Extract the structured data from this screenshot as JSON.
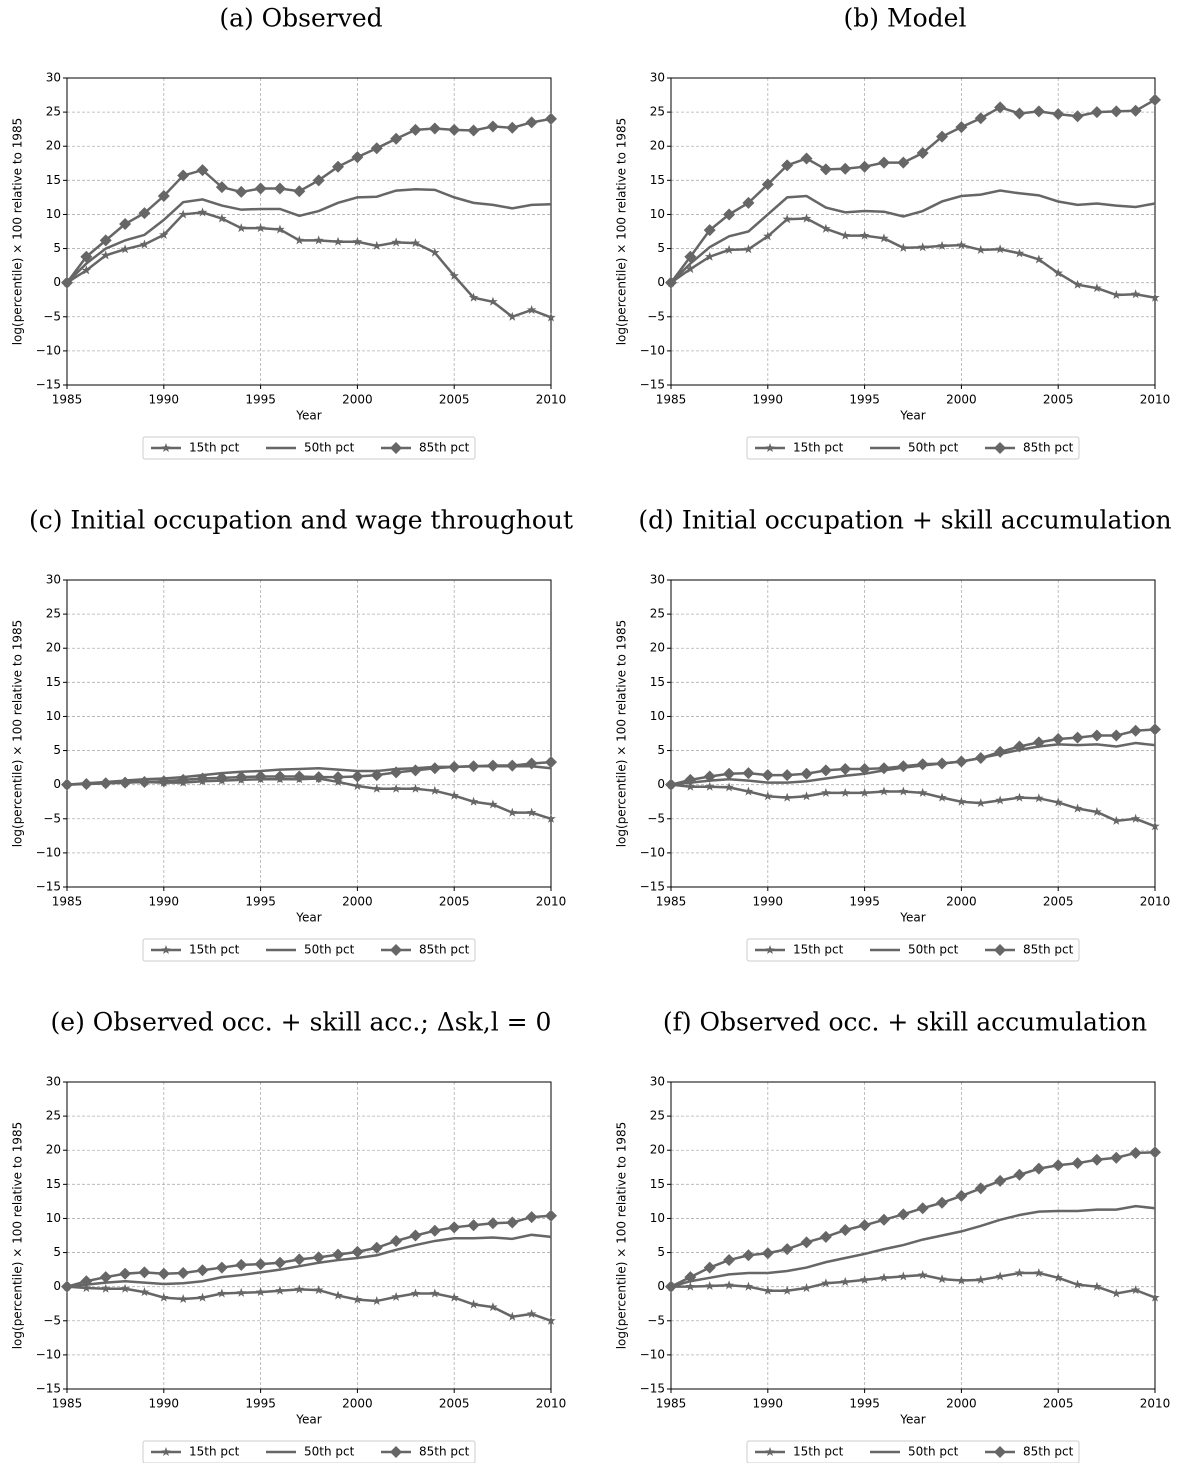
{
  "chart_data": [
    {
      "type": "line",
      "title": "(a) Observed",
      "x_label": "Year",
      "y_label": "log(percentile) × 100 relative to 1985",
      "x": [
        1985,
        1986,
        1987,
        1988,
        1989,
        1990,
        1991,
        1992,
        1993,
        1994,
        1995,
        1996,
        1997,
        1998,
        1999,
        2000,
        2001,
        2002,
        2003,
        2004,
        2005,
        2006,
        2007,
        2008,
        2009,
        2010
      ],
      "series": [
        {
          "name": "15th pct",
          "color": "#666666",
          "marker": "star",
          "values": [
            0,
            1.8,
            4,
            4.9,
            5.6,
            7,
            10,
            10.3,
            9.4,
            8,
            8,
            7.8,
            6.2,
            6.2,
            6,
            6,
            5.4,
            5.9,
            5.8,
            4.4,
            1,
            -2.2,
            -2.8,
            -5,
            -4,
            -5.1
          ]
        },
        {
          "name": "50th pct",
          "color": "#666666",
          "marker": "none",
          "values": [
            0,
            2.8,
            5,
            6.2,
            7,
            9.2,
            11.8,
            12.2,
            11.3,
            10.7,
            10.8,
            10.8,
            9.8,
            10.5,
            11.7,
            12.5,
            12.6,
            13.5,
            13.7,
            13.6,
            12.5,
            11.7,
            11.4,
            10.9,
            11.4,
            11.5
          ]
        },
        {
          "name": "85th pct",
          "color": "#666666",
          "marker": "diamond",
          "values": [
            0,
            3.8,
            6.2,
            8.6,
            10.2,
            12.7,
            15.7,
            16.5,
            14,
            13.3,
            13.8,
            13.8,
            13.4,
            15,
            17,
            18.4,
            19.7,
            21.1,
            22.4,
            22.6,
            22.4,
            22.3,
            22.9,
            22.7,
            23.5,
            24
          ]
        }
      ],
      "xlim": [
        1985,
        2010
      ],
      "ylim": [
        -15,
        30
      ],
      "xticks": [
        1985,
        1990,
        1995,
        2000,
        2005,
        2010
      ],
      "yticks": [
        {
          "value": -15,
          "label": "−15"
        },
        {
          "value": -10,
          "label": "−10"
        },
        {
          "value": -5,
          "label": "−5"
        },
        0,
        5,
        10,
        15,
        20,
        25,
        30
      ],
      "grid": true
    },
    {
      "type": "line",
      "title": "(b) Model",
      "x_label": "Year",
      "y_label": "log(percentile) × 100 relative to 1985",
      "x": [
        1985,
        1986,
        1987,
        1988,
        1989,
        1990,
        1991,
        1992,
        1993,
        1994,
        1995,
        1996,
        1997,
        1998,
        1999,
        2000,
        2001,
        2002,
        2003,
        2004,
        2005,
        2006,
        2007,
        2008,
        2009,
        2010
      ],
      "series": [
        {
          "name": "15th pct",
          "color": "#666666",
          "marker": "star",
          "values": [
            0,
            2,
            3.8,
            4.8,
            4.9,
            6.8,
            9.3,
            9.4,
            7.9,
            6.9,
            6.9,
            6.5,
            5.1,
            5.2,
            5.4,
            5.5,
            4.8,
            4.9,
            4.3,
            3.4,
            1.4,
            -0.3,
            -0.8,
            -1.8,
            -1.7,
            -2.2
          ]
        },
        {
          "name": "50th pct",
          "color": "#666666",
          "marker": "none",
          "values": [
            0,
            2.8,
            5.2,
            6.8,
            7.5,
            10,
            12.5,
            12.7,
            11,
            10.3,
            10.5,
            10.4,
            9.7,
            10.5,
            11.9,
            12.7,
            12.9,
            13.5,
            13.1,
            12.8,
            11.9,
            11.4,
            11.6,
            11.3,
            11.1,
            11.6
          ]
        },
        {
          "name": "85th pct",
          "color": "#666666",
          "marker": "diamond",
          "values": [
            0,
            3.8,
            7.7,
            10,
            11.7,
            14.4,
            17.2,
            18.2,
            16.6,
            16.7,
            17,
            17.6,
            17.6,
            19,
            21.4,
            22.8,
            24.1,
            25.7,
            24.8,
            25.1,
            24.7,
            24.4,
            25,
            25.1,
            25.2,
            26.8
          ]
        }
      ],
      "xlim": [
        1985,
        2010
      ],
      "ylim": [
        -15,
        30
      ],
      "xticks": [
        1985,
        1990,
        1995,
        2000,
        2005,
        2010
      ],
      "yticks": [
        {
          "value": -15,
          "label": "−15"
        },
        {
          "value": -10,
          "label": "−10"
        },
        {
          "value": -5,
          "label": "−5"
        },
        0,
        5,
        10,
        15,
        20,
        25,
        30
      ],
      "grid": true
    },
    {
      "type": "line",
      "title": "(c) Initial occupation and wage throughout",
      "x_label": "Year",
      "y_label": "log(percentile) × 100 relative to 1985",
      "x": [
        1985,
        1986,
        1987,
        1988,
        1989,
        1990,
        1991,
        1992,
        1993,
        1994,
        1995,
        1996,
        1997,
        1998,
        1999,
        2000,
        2001,
        2002,
        2003,
        2004,
        2005,
        2006,
        2007,
        2008,
        2009,
        2010
      ],
      "series": [
        {
          "name": "15th pct",
          "color": "#666666",
          "marker": "star",
          "values": [
            0,
            0.1,
            0.2,
            0.3,
            0.4,
            0.3,
            0.3,
            0.5,
            0.6,
            0.7,
            0.8,
            0.8,
            0.8,
            0.9,
            0.4,
            -0.2,
            -0.6,
            -0.6,
            -0.6,
            -0.9,
            -1.6,
            -2.5,
            -2.9,
            -4.1,
            -4.1,
            -5
          ]
        },
        {
          "name": "50th pct",
          "color": "#666666",
          "marker": "none",
          "values": [
            0,
            0.2,
            0.4,
            0.6,
            0.8,
            0.9,
            1.1,
            1.4,
            1.7,
            1.9,
            2,
            2.2,
            2.3,
            2.4,
            2.2,
            2,
            2,
            2.3,
            2.4,
            2.6,
            2.6,
            2.7,
            2.7,
            2.7,
            2.7,
            2.4
          ]
        },
        {
          "name": "85th pct",
          "color": "#666666",
          "marker": "diamond",
          "values": [
            0,
            0.1,
            0.2,
            0.3,
            0.4,
            0.5,
            0.7,
            0.9,
            1,
            1.1,
            1.2,
            1.2,
            1.2,
            1.1,
            1.1,
            1.2,
            1.4,
            1.8,
            2.1,
            2.4,
            2.6,
            2.7,
            2.8,
            2.8,
            3.1,
            3.3
          ]
        }
      ],
      "xlim": [
        1985,
        2010
      ],
      "ylim": [
        -15,
        30
      ],
      "xticks": [
        1985,
        1990,
        1995,
        2000,
        2005,
        2010
      ],
      "yticks": [
        {
          "value": -15,
          "label": "−15"
        },
        {
          "value": -10,
          "label": "−10"
        },
        {
          "value": -5,
          "label": "−5"
        },
        0,
        5,
        10,
        15,
        20,
        25,
        30
      ],
      "grid": true
    },
    {
      "type": "line",
      "title": "(d) Initial occupation + skill accumulation",
      "x_label": "Year",
      "y_label": "log(percentile) × 100 relative to 1985",
      "x": [
        1985,
        1986,
        1987,
        1988,
        1989,
        1990,
        1991,
        1992,
        1993,
        1994,
        1995,
        1996,
        1997,
        1998,
        1999,
        2000,
        2001,
        2002,
        2003,
        2004,
        2005,
        2006,
        2007,
        2008,
        2009,
        2010
      ],
      "series": [
        {
          "name": "15th pct",
          "color": "#666666",
          "marker": "star",
          "values": [
            0,
            -0.3,
            -0.3,
            -0.4,
            -1,
            -1.7,
            -1.9,
            -1.7,
            -1.2,
            -1.2,
            -1.2,
            -1,
            -1,
            -1.2,
            -1.9,
            -2.5,
            -2.7,
            -2.3,
            -1.9,
            -2,
            -2.6,
            -3.5,
            -4,
            -5.3,
            -5,
            -6.1
          ]
        },
        {
          "name": "50th pct",
          "color": "#666666",
          "marker": "none",
          "values": [
            0,
            0.3,
            0.6,
            0.8,
            0.6,
            0.3,
            0.3,
            0.5,
            0.9,
            1.3,
            1.6,
            2.1,
            2.5,
            2.8,
            3.1,
            3.4,
            3.9,
            4.5,
            5.1,
            5.6,
            5.9,
            5.8,
            5.9,
            5.6,
            6.1,
            5.8
          ]
        },
        {
          "name": "85th pct",
          "color": "#666666",
          "marker": "diamond",
          "values": [
            0,
            0.7,
            1.2,
            1.6,
            1.7,
            1.4,
            1.4,
            1.6,
            2.1,
            2.3,
            2.3,
            2.4,
            2.7,
            3,
            3.1,
            3.4,
            3.9,
            4.8,
            5.6,
            6.2,
            6.7,
            6.9,
            7.2,
            7.2,
            7.9,
            8.1
          ]
        }
      ],
      "xlim": [
        1985,
        2010
      ],
      "ylim": [
        -15,
        30
      ],
      "xticks": [
        1985,
        1990,
        1995,
        2000,
        2005,
        2010
      ],
      "yticks": [
        {
          "value": -15,
          "label": "−15"
        },
        {
          "value": -10,
          "label": "−10"
        },
        {
          "value": -5,
          "label": "−5"
        },
        0,
        5,
        10,
        15,
        20,
        25,
        30
      ],
      "grid": true
    },
    {
      "type": "line",
      "title": "(e) Observed occ. + skill acc.; Δsk,l = 0",
      "x_label": "Year",
      "y_label": "log(percentile) × 100 relative to 1985",
      "x": [
        1985,
        1986,
        1987,
        1988,
        1989,
        1990,
        1991,
        1992,
        1993,
        1994,
        1995,
        1996,
        1997,
        1998,
        1999,
        2000,
        2001,
        2002,
        2003,
        2004,
        2005,
        2006,
        2007,
        2008,
        2009,
        2010
      ],
      "series": [
        {
          "name": "15th pct",
          "color": "#666666",
          "marker": "star",
          "values": [
            0,
            -0.2,
            -0.3,
            -0.3,
            -0.8,
            -1.6,
            -1.8,
            -1.6,
            -1,
            -0.9,
            -0.8,
            -0.6,
            -0.4,
            -0.5,
            -1.3,
            -1.9,
            -2.1,
            -1.5,
            -1,
            -1,
            -1.6,
            -2.6,
            -3,
            -4.4,
            -4,
            -5
          ]
        },
        {
          "name": "50th pct",
          "color": "#666666",
          "marker": "none",
          "values": [
            0,
            0.3,
            0.6,
            0.8,
            0.6,
            0.4,
            0.5,
            0.8,
            1.4,
            1.7,
            2.1,
            2.5,
            3,
            3.5,
            3.9,
            4.2,
            4.6,
            5.4,
            6.1,
            6.7,
            7.1,
            7.1,
            7.2,
            7,
            7.6,
            7.3
          ]
        },
        {
          "name": "85th pct",
          "color": "#666666",
          "marker": "diamond",
          "values": [
            0,
            0.8,
            1.4,
            1.9,
            2.1,
            1.9,
            2,
            2.4,
            2.8,
            3.2,
            3.3,
            3.5,
            4,
            4.3,
            4.7,
            5.1,
            5.7,
            6.7,
            7.5,
            8.2,
            8.7,
            9,
            9.3,
            9.4,
            10.2,
            10.4
          ]
        }
      ],
      "xlim": [
        1985,
        2010
      ],
      "ylim": [
        -15,
        30
      ],
      "xticks": [
        1985,
        1990,
        1995,
        2000,
        2005,
        2010
      ],
      "yticks": [
        {
          "value": -15,
          "label": "−15"
        },
        {
          "value": -10,
          "label": "−10"
        },
        {
          "value": -5,
          "label": "−5"
        },
        0,
        5,
        10,
        15,
        20,
        25,
        30
      ],
      "grid": true
    },
    {
      "type": "line",
      "title": "(f) Observed occ. + skill accumulation",
      "x_label": "Year",
      "y_label": "log(percentile) × 100 relative to 1985",
      "x": [
        1985,
        1986,
        1987,
        1988,
        1989,
        1990,
        1991,
        1992,
        1993,
        1994,
        1995,
        1996,
        1997,
        1998,
        1999,
        2000,
        2001,
        2002,
        2003,
        2004,
        2005,
        2006,
        2007,
        2008,
        2009,
        2010
      ],
      "series": [
        {
          "name": "15th pct",
          "color": "#666666",
          "marker": "star",
          "values": [
            0,
            0,
            0.1,
            0.2,
            0,
            -0.6,
            -0.6,
            -0.2,
            0.5,
            0.7,
            1,
            1.3,
            1.5,
            1.7,
            1.1,
            0.9,
            1,
            1.5,
            2,
            2,
            1.3,
            0.3,
            0,
            -1,
            -0.5,
            -1.6
          ]
        },
        {
          "name": "50th pct",
          "color": "#666666",
          "marker": "none",
          "values": [
            0,
            0.8,
            1.3,
            1.8,
            2,
            2,
            2.3,
            2.8,
            3.6,
            4.2,
            4.8,
            5.5,
            6.1,
            6.9,
            7.5,
            8.1,
            8.9,
            9.8,
            10.5,
            11,
            11.1,
            11.1,
            11.3,
            11.3,
            11.8,
            11.5
          ]
        },
        {
          "name": "85th pct",
          "color": "#666666",
          "marker": "diamond",
          "values": [
            0,
            1.4,
            2.8,
            3.9,
            4.6,
            4.9,
            5.5,
            6.5,
            7.3,
            8.3,
            9,
            9.8,
            10.6,
            11.5,
            12.3,
            13.3,
            14.4,
            15.5,
            16.4,
            17.3,
            17.8,
            18.1,
            18.6,
            18.9,
            19.6,
            19.7
          ]
        }
      ],
      "xlim": [
        1985,
        2010
      ],
      "ylim": [
        -15,
        30
      ],
      "xticks": [
        1985,
        1990,
        1995,
        2000,
        2005,
        2010
      ],
      "yticks": [
        {
          "value": -15,
          "label": "−15"
        },
        {
          "value": -10,
          "label": "−10"
        },
        {
          "value": -5,
          "label": "−5"
        },
        0,
        5,
        10,
        15,
        20,
        25,
        30
      ],
      "grid": true
    }
  ]
}
